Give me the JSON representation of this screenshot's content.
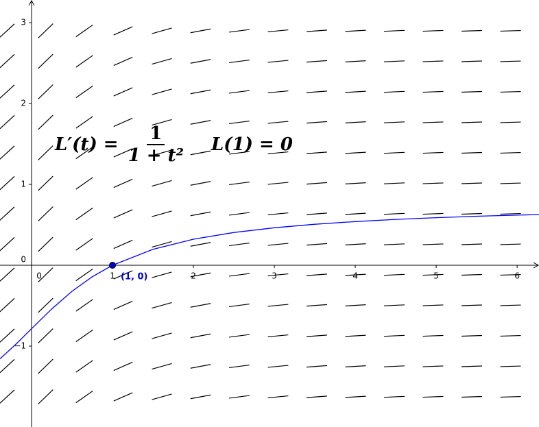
{
  "chart_data": {
    "type": "line",
    "x": [
      -0.39,
      -0.2,
      0,
      0.25,
      0.5,
      0.75,
      1,
      1.5,
      2,
      2.5,
      3,
      3.5,
      4,
      4.5,
      5,
      5.5,
      6,
      6.27
    ],
    "series": [
      {
        "color": "#0000ff",
        "values": [
          -1.157,
          -0.983,
          -0.785,
          -0.54,
          -0.322,
          -0.142,
          0,
          0.197,
          0.322,
          0.405,
          0.464,
          0.507,
          0.54,
          0.567,
          0.588,
          0.606,
          0.62,
          0.627
        ]
      }
    ],
    "xlim": [
      -0.39,
      6.27
    ],
    "ylim": [
      -2.0,
      3.28
    ],
    "xticks": [
      0,
      1,
      2,
      3,
      4,
      5,
      6
    ],
    "yticks": [
      {
        "value": -1,
        "label": "−1"
      },
      0,
      1,
      2,
      3
    ],
    "points": [
      {
        "x": 1,
        "y": 0,
        "label": "(1, 0)",
        "color": "#0000cc"
      }
    ],
    "annotation": {
      "lhs": "L′(t) =",
      "numerator": "1",
      "denominator": "1 + t²",
      "condition": "L(1) = 0"
    }
  }
}
